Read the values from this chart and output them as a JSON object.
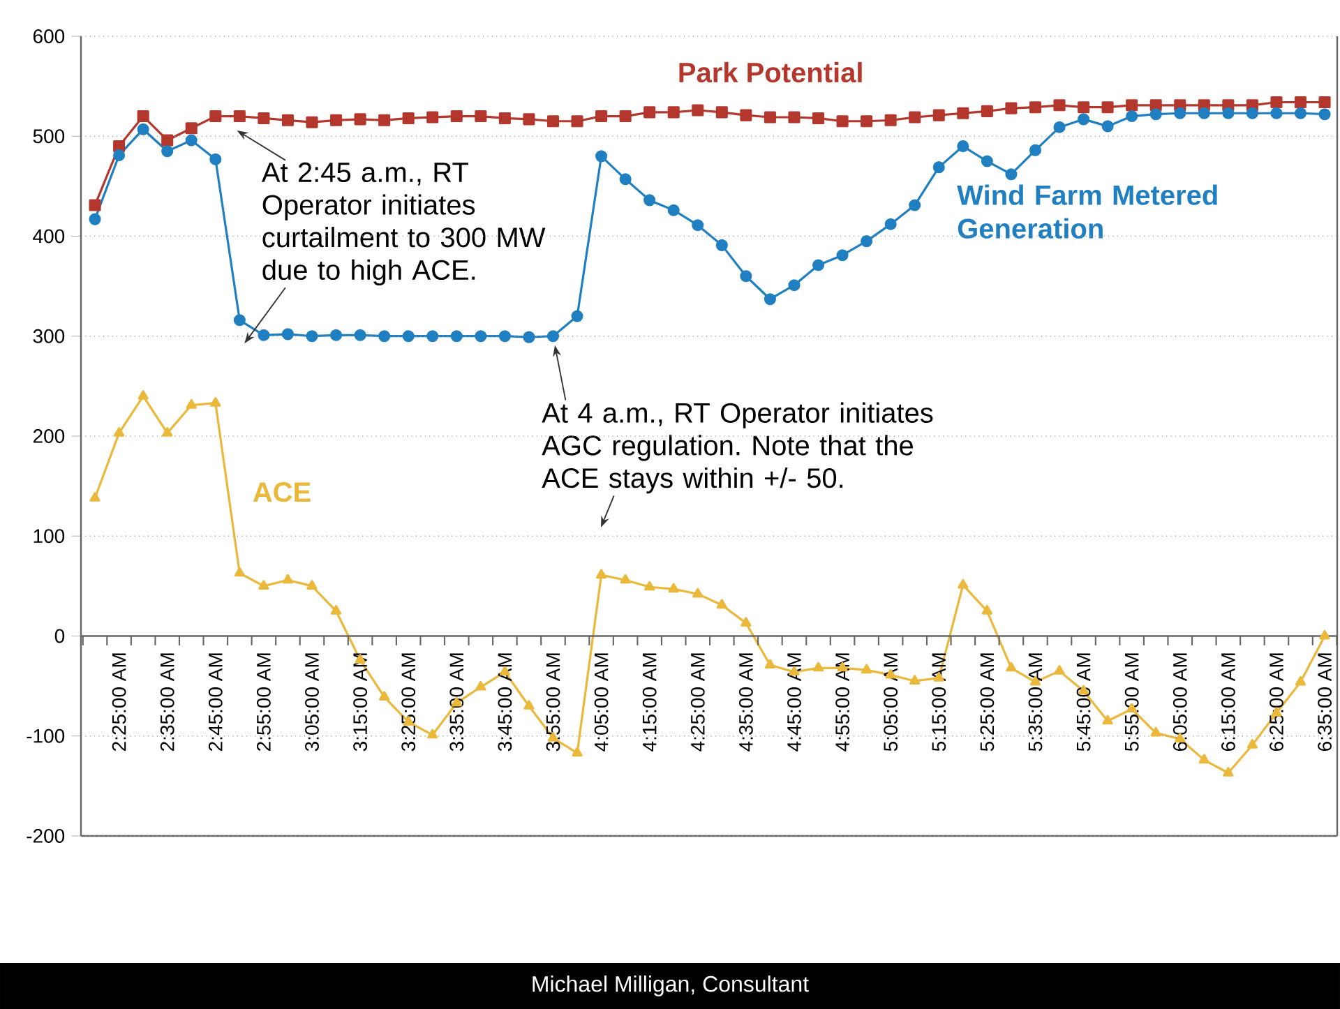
{
  "chart_data": {
    "type": "line",
    "categories": [
      null,
      "2:25:00 AM",
      null,
      "2:35:00 AM",
      null,
      "2:45:00 AM",
      null,
      "2:55:00 AM",
      null,
      "3:05:00 AM",
      null,
      "3:15:00 AM",
      null,
      "3:25:00 AM",
      null,
      "3:35:00 AM",
      null,
      "3:45:00 AM",
      null,
      "3:55:00 AM",
      null,
      "4:05:00 AM",
      null,
      "4:15:00 AM",
      null,
      "4:25:00 AM",
      null,
      "4:35:00 AM",
      null,
      "4:45:00 AM",
      null,
      "4:55:00 AM",
      null,
      "5:05:00 AM",
      null,
      "5:15:00 AM",
      null,
      "5:25:00 AM",
      null,
      "5:35:00 AM",
      null,
      "5:45:00 AM",
      null,
      "5:55:00 AM",
      null,
      "6:05:00 AM",
      null,
      "6:15:00 AM",
      null,
      "6:25:00 AM",
      null,
      "6:35:00 AM"
    ],
    "ylim": [
      -200,
      600
    ],
    "yticks": [
      -200,
      -100,
      0,
      100,
      200,
      300,
      400,
      500,
      600
    ],
    "grid": "y",
    "line_style": "solid",
    "series": [
      {
        "name": "Park Potential",
        "color": "#b3372c",
        "marker": "square",
        "values": [
          431,
          490,
          520,
          496,
          508,
          520,
          520,
          518,
          516,
          514,
          516,
          517,
          516,
          518,
          519,
          520,
          520,
          518,
          517,
          515,
          515,
          520,
          520,
          524,
          524,
          526,
          524,
          521,
          519,
          519,
          518,
          515,
          515,
          516,
          519,
          521,
          523,
          525,
          528,
          529,
          531,
          529,
          529,
          531,
          531,
          531,
          531,
          531,
          531,
          534,
          534,
          534
        ]
      },
      {
        "name": "Wind Farm Metered Generation",
        "color": "#1f7fc1",
        "marker": "circle",
        "values": [
          417,
          481,
          507,
          485,
          496,
          477,
          316,
          301,
          302,
          300,
          301,
          301,
          300,
          300,
          300,
          300,
          300,
          300,
          299,
          300,
          320,
          480,
          457,
          436,
          426,
          411,
          391,
          360,
          337,
          351,
          371,
          381,
          395,
          412,
          431,
          469,
          490,
          475,
          462,
          486,
          509,
          517,
          510,
          520,
          522,
          523,
          523,
          523,
          523,
          523,
          523,
          522
        ]
      },
      {
        "name": "ACE",
        "color": "#eab83a",
        "marker": "triangle",
        "values": [
          138,
          203,
          240,
          203,
          231,
          233,
          63,
          50,
          56,
          50,
          25,
          -24,
          -61,
          -86,
          -99,
          -67,
          -51,
          -36,
          -70,
          -102,
          -117,
          61,
          56,
          49,
          47,
          42,
          31,
          13,
          -29,
          -36,
          -32,
          -32,
          -34,
          -39,
          -45,
          -42,
          51,
          25,
          -32,
          -46,
          -35,
          -55,
          -85,
          -73,
          -97,
          -103,
          -124,
          -137,
          -109,
          -77,
          -46,
          0
        ]
      }
    ],
    "annotations": [
      "At 2:45 a.m., RT Operator initiates curtailment to 300 MW due to high ACE.",
      {
        "text": "At 4 a.m., RT Operator initiates AGC regulation. Note that the ACE stays within +/- 50.",
        "x": "3:55:00 AM",
        "y": 300
      },
      "Michael Milligan, Consultant"
    ]
  }
}
